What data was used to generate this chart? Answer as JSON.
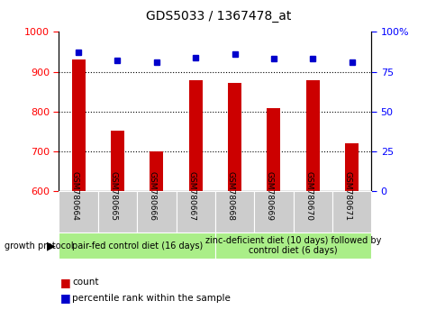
{
  "title": "GDS5033 / 1367478_at",
  "samples": [
    "GSM780664",
    "GSM780665",
    "GSM780666",
    "GSM780667",
    "GSM780668",
    "GSM780669",
    "GSM780670",
    "GSM780671"
  ],
  "counts": [
    930,
    752,
    700,
    878,
    873,
    808,
    878,
    720
  ],
  "percentiles": [
    87,
    82,
    81,
    84,
    86,
    83,
    83,
    81
  ],
  "ylim_left": [
    600,
    1000
  ],
  "ylim_right": [
    0,
    100
  ],
  "yticks_left": [
    600,
    700,
    800,
    900,
    1000
  ],
  "yticks_right": [
    0,
    25,
    50,
    75,
    100
  ],
  "bar_color": "#cc0000",
  "dot_color": "#0000cc",
  "bg_color": "#ffffff",
  "group1_label": "pair-fed control diet (16 days)",
  "group2_label": "zinc-deficient diet (10 days) followed by\ncontrol diet (6 days)",
  "group1_color": "#aaee88",
  "group2_color": "#aaee88",
  "growth_protocol_label": "growth protocol",
  "legend_count_label": "count",
  "legend_pct_label": "percentile rank within the sample",
  "title_fontsize": 10,
  "tick_fontsize": 8,
  "sample_fontsize": 6.5,
  "group_fontsize": 7
}
